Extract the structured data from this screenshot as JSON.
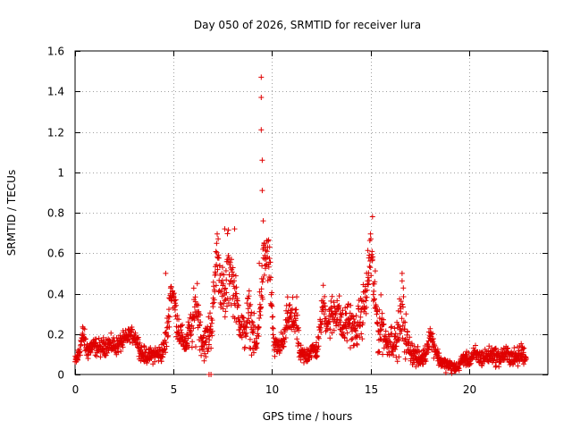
{
  "chart_data": {
    "type": "scatter",
    "title": "Day 050 of 2026, SRMTID for receiver lura",
    "xlabel": "GPS time / hours",
    "ylabel": "SRMTID / TECUs",
    "xlim": [
      0,
      24
    ],
    "ylim": [
      0,
      1.6
    ],
    "xticks": [
      0,
      5,
      10,
      15,
      20
    ],
    "xtick_labels": [
      "0",
      "5",
      "10",
      "15",
      "20"
    ],
    "yticks": [
      0,
      0.2,
      0.4,
      0.6,
      0.8,
      1.0,
      1.2,
      1.4,
      1.6
    ],
    "ytick_labels": [
      "0",
      "0.2",
      "0.4",
      "0.6",
      "0.8",
      "1",
      "1.2",
      "1.4",
      "1.6"
    ],
    "grid": true,
    "marker": "+",
    "marker_color": "#e00000",
    "series": [
      {
        "name": "SRMTID",
        "profile_x": [
          0.0,
          0.15,
          0.4,
          0.6,
          0.9,
          1.3,
          1.7,
          2.1,
          2.5,
          2.8,
          3.1,
          3.4,
          3.7,
          4.0,
          4.3,
          4.5,
          4.7,
          4.85,
          5.0,
          5.2,
          5.4,
          5.6,
          5.9,
          6.2,
          6.4,
          6.6,
          6.8,
          7.0,
          7.2,
          7.4,
          7.6,
          7.8,
          8.0,
          8.2,
          8.4,
          8.6,
          8.8,
          9.0,
          9.2,
          9.4,
          9.6,
          9.75,
          9.9,
          10.1,
          10.3,
          10.6,
          10.8,
          11.0,
          11.2,
          11.4,
          11.7,
          12.0,
          12.3,
          12.6,
          12.8,
          13.0,
          13.3,
          13.6,
          13.9,
          14.2,
          14.5,
          14.8,
          15.0,
          15.2,
          15.4,
          15.6,
          15.8,
          16.0,
          16.3,
          16.6,
          16.9,
          17.2,
          17.5,
          17.8,
          18.0,
          18.2,
          18.5,
          18.8,
          19.1,
          19.4,
          19.7,
          20.0,
          20.3,
          20.6,
          20.9,
          21.2,
          21.5,
          21.8,
          22.1,
          22.4,
          22.7,
          22.9
        ],
        "profile_center": [
          0.06,
          0.09,
          0.2,
          0.12,
          0.14,
          0.13,
          0.15,
          0.14,
          0.17,
          0.2,
          0.18,
          0.1,
          0.09,
          0.1,
          0.1,
          0.12,
          0.22,
          0.42,
          0.38,
          0.25,
          0.18,
          0.15,
          0.22,
          0.35,
          0.18,
          0.15,
          0.2,
          0.3,
          0.62,
          0.45,
          0.35,
          0.55,
          0.45,
          0.35,
          0.25,
          0.2,
          0.3,
          0.22,
          0.12,
          0.35,
          0.55,
          0.6,
          0.5,
          0.12,
          0.14,
          0.16,
          0.3,
          0.25,
          0.3,
          0.1,
          0.09,
          0.12,
          0.12,
          0.36,
          0.26,
          0.28,
          0.33,
          0.22,
          0.28,
          0.2,
          0.28,
          0.4,
          0.62,
          0.38,
          0.22,
          0.25,
          0.15,
          0.18,
          0.15,
          0.3,
          0.14,
          0.1,
          0.07,
          0.1,
          0.2,
          0.15,
          0.07,
          0.05,
          0.04,
          0.03,
          0.08,
          0.07,
          0.1,
          0.08,
          0.09,
          0.1,
          0.08,
          0.1,
          0.09,
          0.08,
          0.11,
          0.08
        ],
        "profile_spread": [
          0.03,
          0.04,
          0.05,
          0.05,
          0.04,
          0.04,
          0.04,
          0.04,
          0.04,
          0.03,
          0.04,
          0.04,
          0.03,
          0.04,
          0.04,
          0.05,
          0.08,
          0.07,
          0.08,
          0.08,
          0.06,
          0.05,
          0.1,
          0.14,
          0.08,
          0.08,
          0.1,
          0.12,
          0.12,
          0.12,
          0.12,
          0.2,
          0.12,
          0.1,
          0.08,
          0.08,
          0.12,
          0.1,
          0.08,
          0.1,
          0.15,
          0.1,
          0.15,
          0.04,
          0.05,
          0.05,
          0.08,
          0.1,
          0.12,
          0.04,
          0.04,
          0.04,
          0.04,
          0.08,
          0.08,
          0.1,
          0.1,
          0.08,
          0.1,
          0.08,
          0.1,
          0.12,
          0.16,
          0.12,
          0.12,
          0.12,
          0.06,
          0.08,
          0.06,
          0.18,
          0.06,
          0.05,
          0.04,
          0.04,
          0.05,
          0.05,
          0.03,
          0.03,
          0.03,
          0.02,
          0.03,
          0.03,
          0.04,
          0.04,
          0.04,
          0.04,
          0.04,
          0.04,
          0.04,
          0.04,
          0.05,
          0.03
        ],
        "spike_points": [
          [
            9.45,
            1.47
          ],
          [
            9.45,
            1.37
          ],
          [
            9.45,
            1.21
          ],
          [
            9.5,
            1.06
          ],
          [
            9.5,
            0.91
          ],
          [
            9.55,
            0.76
          ],
          [
            9.6,
            0.65
          ],
          [
            9.35,
            0.55
          ],
          [
            6.8,
            0.0
          ],
          [
            6.9,
            0.0
          ],
          [
            4.6,
            0.5
          ],
          [
            7.6,
            0.72
          ],
          [
            8.1,
            0.72
          ],
          [
            16.6,
            0.5
          ],
          [
            15.1,
            0.78
          ]
        ]
      }
    ]
  }
}
